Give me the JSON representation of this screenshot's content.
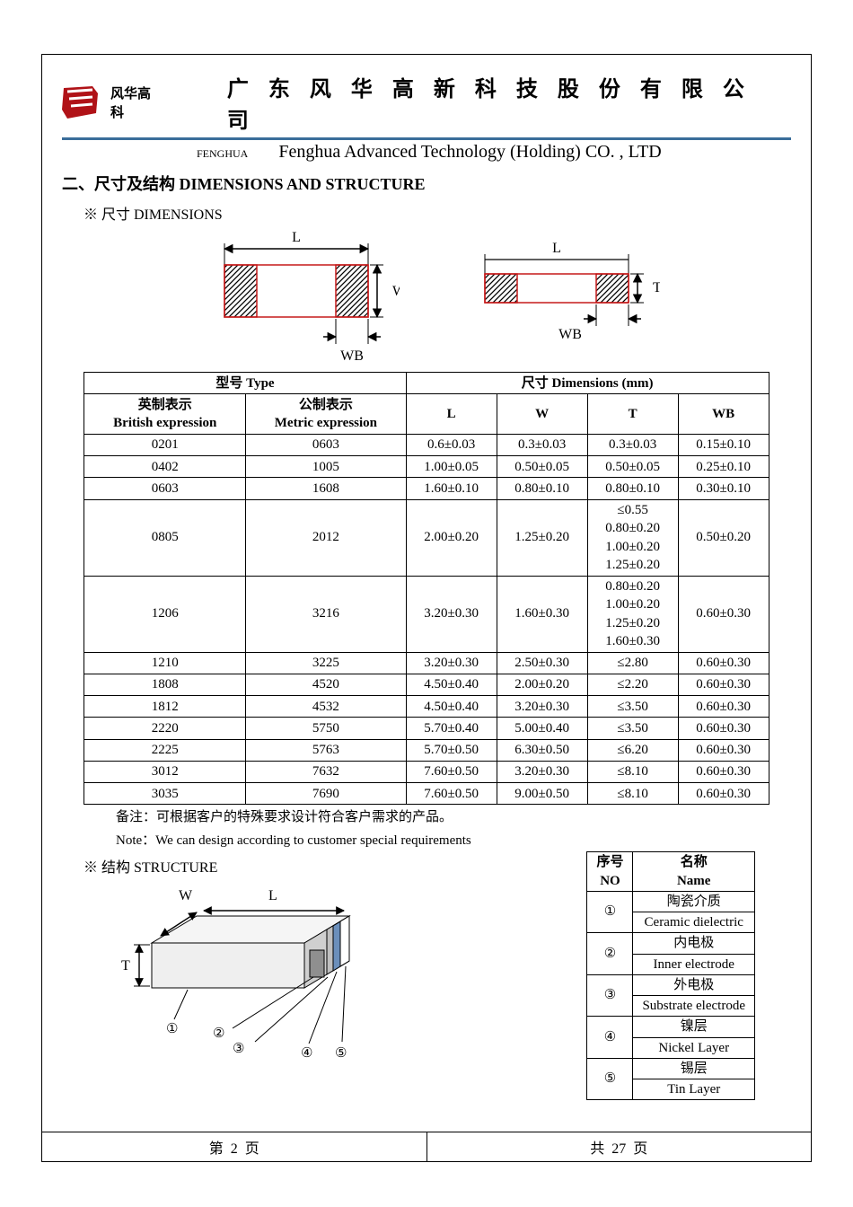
{
  "header": {
    "brand_cn": "风华高科",
    "company_cn": "广 东 风 华 高 新 科 技 股 份 有 限 公 司",
    "brand_en": "FENGHUA",
    "company_en": "Fenghua Advanced Technology (Holding) CO. , LTD",
    "logo_color": "#b01217",
    "bluebar_color": "#3a6d9a"
  },
  "section": {
    "title": "二、尺寸及结构   DIMENSIONS AND STRUCTURE",
    "dims_heading": "※ 尺寸 DIMENSIONS",
    "structure_heading": "※ 结构 STRUCTURE"
  },
  "dim_diagram": {
    "L": "L",
    "W": "W",
    "T": "T",
    "WB": "WB",
    "hatch_color": "#000000",
    "outline_color": "#c61a1a"
  },
  "dim_table": {
    "head_type": "型号 Type",
    "head_dims": "尺寸    Dimensions    (mm)",
    "head_british_cn": "英制表示",
    "head_british_en": "British expression",
    "head_metric_cn": "公制表示",
    "head_metric_en": "Metric expression",
    "col_L": "L",
    "col_W": "W",
    "col_T": "T",
    "col_WB": "WB",
    "rows": [
      {
        "be": "0201",
        "me": "0603",
        "L": "0.6±0.03",
        "W": "0.3±0.03",
        "T": "0.3±0.03",
        "WB": "0.15±0.10"
      },
      {
        "be": "0402",
        "me": "1005",
        "L": "1.00±0.05",
        "W": "0.50±0.05",
        "T": "0.50±0.05",
        "WB": "0.25±0.10"
      },
      {
        "be": "0603",
        "me": "1608",
        "L": "1.60±0.10",
        "W": "0.80±0.10",
        "T": "0.80±0.10",
        "WB": "0.30±0.10"
      },
      {
        "be": "0805",
        "me": "2012",
        "L": "2.00±0.20",
        "W": "1.25±0.20",
        "T": "≤0.55\n0.80±0.20\n1.00±0.20\n1.25±0.20",
        "WB": "0.50±0.20"
      },
      {
        "be": "1206",
        "me": "3216",
        "L": "3.20±0.30",
        "W": "1.60±0.30",
        "T": "0.80±0.20\n1.00±0.20\n1.25±0.20\n1.60±0.30",
        "WB": "0.60±0.30"
      },
      {
        "be": "1210",
        "me": "3225",
        "L": "3.20±0.30",
        "W": "2.50±0.30",
        "T": "≤2.80",
        "WB": "0.60±0.30"
      },
      {
        "be": "1808",
        "me": "4520",
        "L": "4.50±0.40",
        "W": "2.00±0.20",
        "T": "≤2.20",
        "WB": "0.60±0.30"
      },
      {
        "be": "1812",
        "me": "4532",
        "L": "4.50±0.40",
        "W": "3.20±0.30",
        "T": "≤3.50",
        "WB": "0.60±0.30"
      },
      {
        "be": "2220",
        "me": "5750",
        "L": "5.70±0.40",
        "W": "5.00±0.40",
        "T": "≤3.50",
        "WB": "0.60±0.30"
      },
      {
        "be": "2225",
        "me": "5763",
        "L": "5.70±0.50",
        "W": "6.30±0.50",
        "T": "≤6.20",
        "WB": "0.60±0.30"
      },
      {
        "be": "3012",
        "me": "7632",
        "L": "7.60±0.50",
        "W": "3.20±0.30",
        "T": "≤8.10",
        "WB": "0.60±0.30"
      },
      {
        "be": "3035",
        "me": "7690",
        "L": "7.60±0.50",
        "W": "9.00±0.50",
        "T": "≤8.10",
        "WB": "0.60±0.30"
      }
    ]
  },
  "remarks": {
    "cn": "备注：可根据客户的特殊要求设计符合客户需求的产品。",
    "en": "Note：We can design according to customer special requirements"
  },
  "structure_diagram": {
    "W": "W",
    "L": "L",
    "T": "T",
    "labels": [
      "①",
      "②",
      "③",
      "④",
      "⑤"
    ],
    "body_fill": "#efefef",
    "edge_fill": "#cfcfcf",
    "electrode_outer": "#bfbfbf",
    "electrode_layer": "#6b8fbb",
    "electrode_tin": "#ffffff"
  },
  "struct_table": {
    "head_no_cn": "序号",
    "head_no_en": "NO",
    "head_name_cn": "名称",
    "head_name_en": "Name",
    "rows": [
      {
        "no": "①",
        "cn": "陶瓷介质",
        "en": "Ceramic   dielectric"
      },
      {
        "no": "②",
        "cn": "内电极",
        "en": "Inner   electrode"
      },
      {
        "no": "③",
        "cn": "外电极",
        "en": "Substrate   electrode"
      },
      {
        "no": "④",
        "cn": "镍层",
        "en": "Nickel Layer"
      },
      {
        "no": "⑤",
        "cn": "锡层",
        "en": "Tin Layer"
      }
    ]
  },
  "footer": {
    "page_label_prefix": "第",
    "page_num": "2",
    "page_label_suffix": "页",
    "total_prefix": "共",
    "total_num": "27",
    "total_suffix": "页"
  }
}
